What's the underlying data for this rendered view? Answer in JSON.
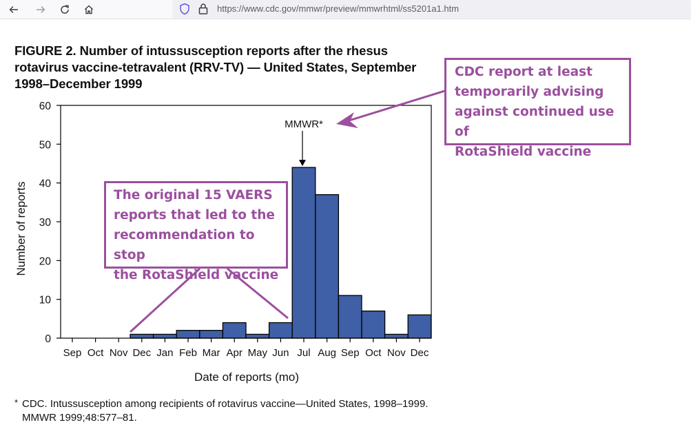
{
  "browser": {
    "url": "https://www.cdc.gov/mmwr/preview/mmwrhtml/ss5201a1.htm",
    "icons": [
      "back-arrow-icon",
      "forward-arrow-icon",
      "reload-icon",
      "home-icon",
      "shield-icon",
      "lock-icon"
    ]
  },
  "figure": {
    "title": "FIGURE 2. Number of intussusception reports after the rhesus rotavirus vaccine-tetravalent (RRV-TV) — United States, September 1998–December 1999",
    "footnote_marker": "*",
    "footnote": "CDC. Intussusception among recipients of rotavirus vaccine—United States, 1998–1999. MMWR 1999;48:577–81."
  },
  "chart_data": {
    "type": "bar",
    "title": "",
    "xlabel": "Date of reports (mo)",
    "ylabel": "Number of reports",
    "ylim": [
      0,
      60
    ],
    "yticks": [
      0,
      10,
      20,
      30,
      40,
      50,
      60
    ],
    "grid": false,
    "categories": [
      "Sep",
      "Oct",
      "Nov",
      "Dec",
      "Jan",
      "Feb",
      "Mar",
      "Apr",
      "May",
      "Jun",
      "Jul",
      "Aug",
      "Sep",
      "Oct",
      "Nov",
      "Dec"
    ],
    "values": [
      0,
      0,
      0,
      1,
      1,
      2,
      2,
      4,
      1,
      4,
      44,
      37,
      11,
      7,
      1,
      6
    ],
    "bar_color": "#3f5fa6",
    "marker": {
      "label": "MMWR*",
      "category_index": 10
    }
  },
  "annotations": {
    "color": "#9b4f9e",
    "cdc_box": [
      "CDC report at least",
      "temporarily advising",
      "against continued use of",
      "RotaShield vaccine"
    ],
    "vaers_box": [
      "The original 15 VAERS",
      "reports that led to the",
      "recommendation to stop",
      "the RotaShield vaccine"
    ]
  }
}
